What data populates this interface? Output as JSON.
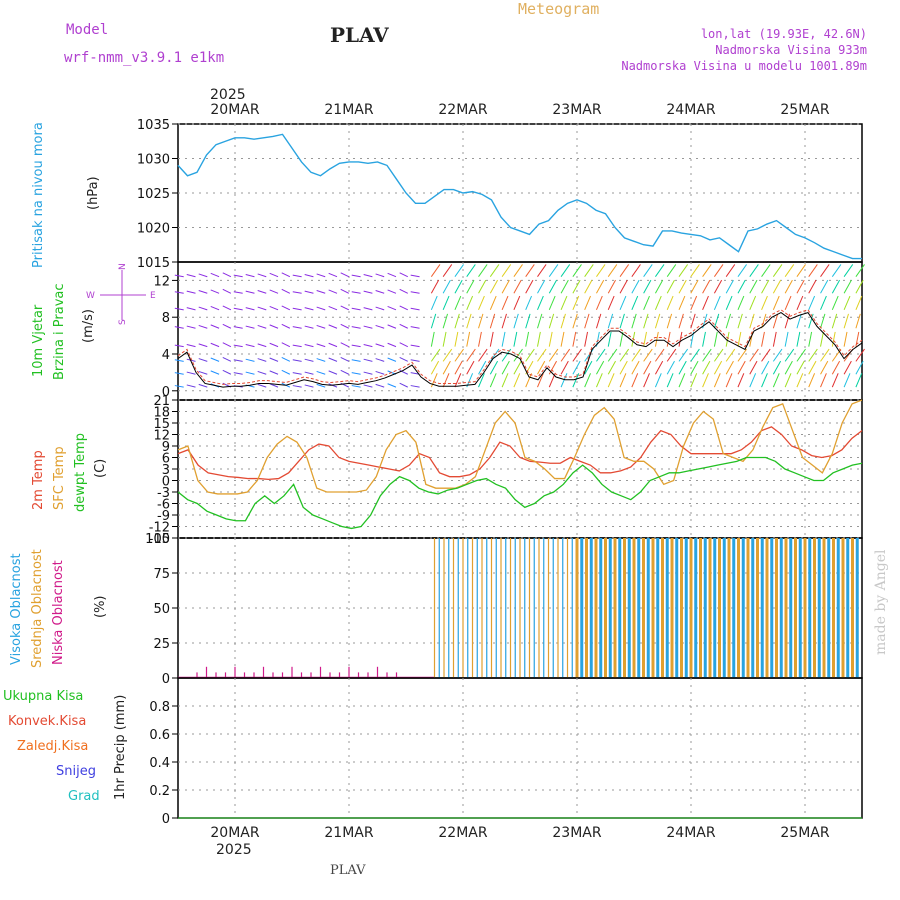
{
  "header": {
    "model_label": "Model",
    "model_name": "wrf-nmm_v3.9.1  e1km",
    "station": "PLAV",
    "title": "Meteogram",
    "lonlat": "lon,lat (19.93E, 42.6N)",
    "elevation": "Nadmorska Visina 933m",
    "model_elevation": "Nadmorska Visina u modelu 1001.89m",
    "year": "2025",
    "footer_station": "PLAV",
    "watermark": "made by Angel"
  },
  "dates": [
    "20MAR",
    "21MAR",
    "22MAR",
    "23MAR",
    "24MAR",
    "25MAR"
  ],
  "colors": {
    "pressure": "#29a3e0",
    "t2m": "#e34a33",
    "sfc": "#e0a030",
    "dew": "#22c022",
    "wind_black": "#000000",
    "high_cloud": "#29a3e0",
    "mid_cloud": "#e0a030",
    "low_cloud": "#d01b8a",
    "grid": "#999999"
  },
  "panels": {
    "pressure": {
      "label1": "Pritisak na nivou mora",
      "unit": "(hPa)"
    },
    "wind": {
      "label1": "10m Vjetar",
      "label2": "Brzina i Pravac",
      "unit": "(m/s)",
      "compass_n": "N",
      "compass_s": "S",
      "compass_w": "W",
      "compass_e": "E"
    },
    "temp": {
      "label1": "2m Temp",
      "label2": "SFC Temp",
      "label3": "dewpt Temp",
      "unit": "(C)"
    },
    "cloud": {
      "label1": "Visoka Oblacnost",
      "label2": "Srednja Oblacnost",
      "label3": "Niska Oblacnost",
      "unit": "(%)"
    },
    "precip": {
      "labels": [
        "Ukupna Kisa",
        "Konvek.Kisa",
        "Zaledj.Kisa",
        "Snijeg",
        "Grad"
      ],
      "unit": "1hr Precip (mm)"
    }
  },
  "chart_data": [
    {
      "type": "line",
      "name_key": "pressure",
      "x_start_hour": 0,
      "x_end_hour": 144,
      "x_step": 3,
      "ylim": [
        1015,
        1035
      ],
      "yticks": [
        "1015",
        "1020",
        "1025",
        "1030",
        "1035"
      ],
      "series": [
        {
          "values": [
            1029,
            1027.5,
            1028,
            1030.5,
            1032,
            1032.5,
            1033,
            1033,
            1032.8,
            1033,
            1033.2,
            1033.5,
            1031.5,
            1029.5,
            1028,
            1027.5,
            1028.5,
            1029.3,
            1029.5,
            1029.5,
            1029.3,
            1029.5,
            1029,
            1027,
            1025,
            1023.5,
            1023.5,
            1024.5,
            1025.5,
            1025.5,
            1025,
            1025.2,
            1024.8,
            1024,
            1021.5,
            1020,
            1019.5,
            1019,
            1020.5,
            1021,
            1022.5,
            1023.5,
            1024,
            1023.5,
            1022.5,
            1022,
            1020,
            1018.5,
            1018,
            1017.5,
            1017.3,
            1019.5,
            1019.5,
            1019.2,
            1019,
            1018.8,
            1018.2,
            1018.5,
            1017.5,
            1016.5,
            1019.5,
            1019.8,
            1020.5,
            1021,
            1020,
            1019,
            1018.5,
            1017.8,
            1017,
            1016.5,
            1016,
            1015.5,
            1015.5
          ]
        }
      ]
    },
    {
      "type": "line",
      "name_key": "wind",
      "ylim": [
        -1,
        14
      ],
      "yticks": [
        "0",
        "4",
        "8",
        "12"
      ],
      "series": [
        {
          "values": [
            3.5,
            4.2,
            2,
            0.8,
            0.6,
            0.4,
            0.5,
            0.5,
            0.6,
            0.8,
            0.8,
            0.7,
            0.6,
            0.9,
            1.2,
            1.0,
            0.7,
            0.6,
            0.7,
            0.8,
            0.7,
            0.9,
            1.1,
            1.4,
            1.8,
            2.2,
            2.8,
            1.5,
            0.8,
            0.5,
            0.5,
            0.5,
            0.6,
            0.7,
            2.0,
            3.5,
            4.2,
            4.0,
            3.5,
            1.5,
            1.2,
            2.5,
            1.5,
            1.2,
            1.2,
            1.5,
            4.5,
            5.5,
            6.5,
            6.5,
            5.8,
            5.0,
            4.8,
            5.5,
            5.5,
            4.8,
            5.5,
            6.0,
            6.8,
            7.5,
            6.5,
            5.5,
            5.0,
            4.5,
            6.5,
            7.0,
            8.0,
            8.5,
            7.8,
            8.2,
            8.5,
            7.0,
            6.0,
            5.0,
            3.5,
            4.5,
            5.2
          ]
        }
      ]
    },
    {
      "type": "line",
      "name_key": "temp",
      "ylim": [
        -15,
        21
      ],
      "yticks": [
        "-15",
        "-12",
        "-9",
        "-6",
        "-3",
        "0",
        "3",
        "6",
        "9",
        "12",
        "15",
        "18",
        "21"
      ],
      "series": [
        {
          "key": "t2m",
          "values": [
            7,
            8,
            4,
            2,
            1.5,
            1,
            0.8,
            0.5,
            0.5,
            0.3,
            0.5,
            2,
            5,
            8,
            9.5,
            9,
            6,
            5,
            4.5,
            4,
            3.5,
            3,
            2.5,
            4,
            7,
            6,
            2,
            1,
            1,
            1.5,
            3,
            6,
            10,
            9,
            6,
            5,
            4.8,
            4.5,
            4.5,
            6,
            5,
            4,
            2,
            2,
            2.5,
            3.5,
            6,
            10,
            13,
            12,
            9,
            7,
            7,
            7,
            7,
            7,
            8,
            10,
            13,
            14,
            12,
            9,
            8,
            6.5,
            6,
            6.5,
            8,
            11,
            13
          ]
        },
        {
          "key": "sfc",
          "values": [
            8,
            9,
            0,
            -3,
            -3.5,
            -3.5,
            -3.5,
            -3,
            0,
            6,
            9.5,
            11.5,
            10,
            6,
            -2,
            -3,
            -3,
            -3,
            -3,
            -2.5,
            1,
            8,
            12,
            13,
            10,
            -1,
            -2,
            -2,
            -2,
            -1,
            1,
            8,
            15,
            18,
            15,
            6,
            5,
            3,
            0.5,
            0.5,
            6,
            12,
            17,
            19,
            16,
            6,
            5,
            5,
            3,
            -1,
            0,
            9,
            15,
            18,
            16,
            7,
            6,
            5,
            8,
            14,
            19,
            20,
            13,
            6,
            4,
            2,
            7,
            15,
            20,
            21
          ]
        },
        {
          "key": "dew",
          "values": [
            -3,
            -5,
            -6,
            -8,
            -9,
            -10,
            -10.5,
            -10.5,
            -6,
            -4,
            -6,
            -4,
            -1,
            -7,
            -9,
            -10,
            -11,
            -12,
            -12.5,
            -12,
            -9,
            -4,
            -1,
            1,
            0,
            -2,
            -3,
            -3.5,
            -2.5,
            -2,
            -1,
            0,
            0.5,
            -1,
            -2,
            -5,
            -7,
            -6,
            -4,
            -3,
            -1,
            2,
            4,
            2,
            -1,
            -3,
            -4,
            -5,
            -3,
            0,
            1,
            2,
            2,
            2.5,
            3,
            3.5,
            4,
            4.5,
            5,
            6,
            6,
            6,
            5,
            3,
            2,
            1,
            0,
            0,
            2,
            3,
            4,
            4.5
          ]
        }
      ]
    },
    {
      "type": "bar",
      "name_key": "cloud",
      "ylim": [
        0,
        100
      ],
      "yticks": [
        "0",
        "25",
        "50",
        "75",
        "100"
      ],
      "low_bars_start": 2,
      "low_bars_end": 23,
      "full_cloud_start_hour": 54,
      "full_cloud_end_hour": 143
    },
    {
      "type": "line",
      "name_key": "precip",
      "ylim": [
        0,
        1
      ],
      "yticks": [
        "0",
        "0.2",
        "0.4",
        "0.6",
        "0.8"
      ],
      "series": [
        {
          "values": [
            0,
            0,
            0,
            0,
            0,
            0,
            0,
            0,
            0,
            0,
            0,
            0,
            0,
            0,
            0,
            0,
            0,
            0,
            0,
            0,
            0,
            0,
            0,
            0,
            0,
            0,
            0,
            0,
            0,
            0,
            0,
            0,
            0,
            0,
            0,
            0,
            0,
            0,
            0,
            0,
            0,
            0,
            0,
            0,
            0,
            0,
            0,
            0,
            0
          ]
        }
      ]
    }
  ]
}
